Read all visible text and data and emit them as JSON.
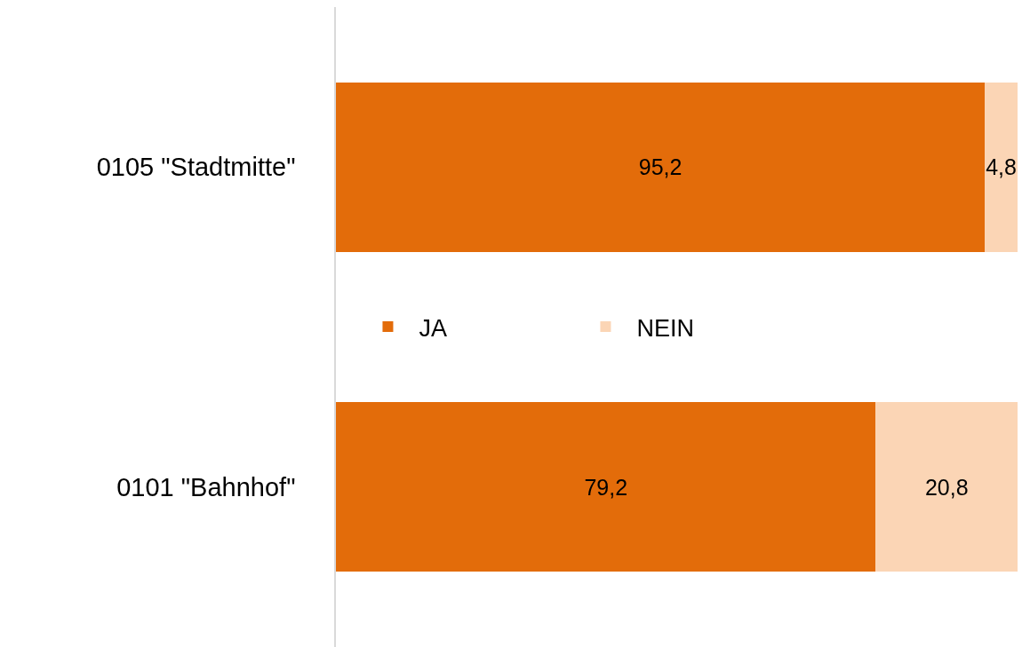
{
  "chart_data": {
    "type": "bar",
    "orientation": "horizontal",
    "stacked": true,
    "categories": [
      "0105 \"Stadtmitte\"",
      "0101 \"Bahnhof\""
    ],
    "series": [
      {
        "name": "JA",
        "color": "#e36c0a",
        "values": [
          95.2,
          79.2
        ],
        "value_labels": [
          "95,2",
          "79,2"
        ]
      },
      {
        "name": "NEIN",
        "color": "#fbd5b5",
        "values": [
          4.8,
          20.8
        ],
        "value_labels": [
          "4,8",
          "20,8"
        ]
      }
    ],
    "tick_labels": "y",
    "legend": "center"
  }
}
